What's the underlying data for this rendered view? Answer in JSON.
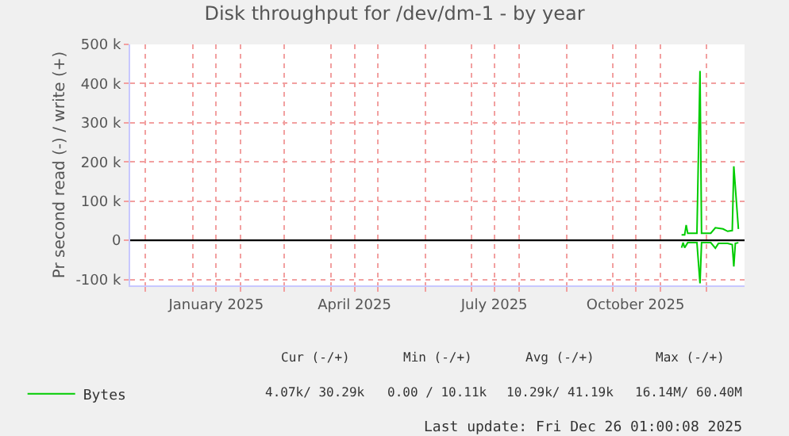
{
  "chart_data": {
    "type": "line",
    "title": "Disk throughput for /dev/dm-1 - by year",
    "ylabel": "Pr second read (-) / write (+)",
    "xlim": [
      "2024-11-21",
      "2025-12-26"
    ],
    "xticks": [
      {
        "value": "2024-12-01",
        "label": null
      },
      {
        "value": "2025-01-01",
        "label": null
      },
      {
        "value": "2025-01-16",
        "label": "January 2025"
      },
      {
        "value": "2025-02-01",
        "label": null
      },
      {
        "value": "2025-03-01",
        "label": null
      },
      {
        "value": "2025-04-01",
        "label": null
      },
      {
        "value": "2025-04-16",
        "label": "April 2025"
      },
      {
        "value": "2025-05-01",
        "label": null
      },
      {
        "value": "2025-06-01",
        "label": null
      },
      {
        "value": "2025-07-01",
        "label": null
      },
      {
        "value": "2025-07-16",
        "label": "July 2025"
      },
      {
        "value": "2025-08-01",
        "label": null
      },
      {
        "value": "2025-09-01",
        "label": null
      },
      {
        "value": "2025-10-01",
        "label": null
      },
      {
        "value": "2025-10-16",
        "label": "October 2025"
      },
      {
        "value": "2025-11-01",
        "label": null
      },
      {
        "value": "2025-12-01",
        "label": null
      }
    ],
    "ylim": [
      -115000,
      500000
    ],
    "yticks": [
      {
        "value": -100000,
        "label": "-100 k"
      },
      0,
      {
        "value": 100000,
        "label": "100 k"
      },
      {
        "value": 200000,
        "label": "200 k"
      },
      {
        "value": 300000,
        "label": "300 k"
      },
      {
        "value": 400000,
        "label": "400 k"
      },
      {
        "value": 500000,
        "label": "500 k"
      }
    ],
    "ref_lines": [
      {
        "axis": "y",
        "value": 0,
        "color": "#000000"
      }
    ],
    "grid": true,
    "legend": "bottom left",
    "series": [
      {
        "name": "Bytes",
        "color": "#00cc00",
        "x": [
          "2025-11-15",
          "2025-11-17",
          "2025-11-18",
          "2025-11-19",
          "2025-11-25",
          "2025-11-27",
          "2025-11-28",
          "2025-12-04",
          "2025-12-07",
          "2025-12-12",
          "2025-12-15",
          "2025-12-18",
          "2025-12-19",
          "2025-12-22"
        ],
        "values": [
          14000,
          14000,
          39000,
          18000,
          18000,
          432000,
          18000,
          18000,
          32000,
          29000,
          23000,
          25000,
          189000,
          29000
        ]
      },
      {
        "color": "#00cc00",
        "x": [
          "2025-11-15",
          "2025-11-16",
          "2025-11-17",
          "2025-11-19",
          "2025-11-25",
          "2025-11-27",
          "2025-11-28",
          "2025-12-04",
          "2025-12-07",
          "2025-12-09",
          "2025-12-15",
          "2025-12-18",
          "2025-12-19",
          "2025-12-20",
          "2025-12-22"
        ],
        "values": [
          -19000,
          -6000,
          -19000,
          -6000,
          -6000,
          -110000,
          -6000,
          -6000,
          -20000,
          -8000,
          -8000,
          -11000,
          -67000,
          -8000,
          -6000
        ]
      }
    ],
    "annotations": [
      "Cur (-/+)",
      "Min (-/+)",
      "Avg (-/+)",
      "Max (-/+)",
      "4.07k/ 30.29k",
      "0.00 / 10.11k",
      "10.29k/ 41.19k",
      "16.14M/ 60.40M",
      "Last update: Fri Dec 26 01:00:08 2025"
    ]
  }
}
